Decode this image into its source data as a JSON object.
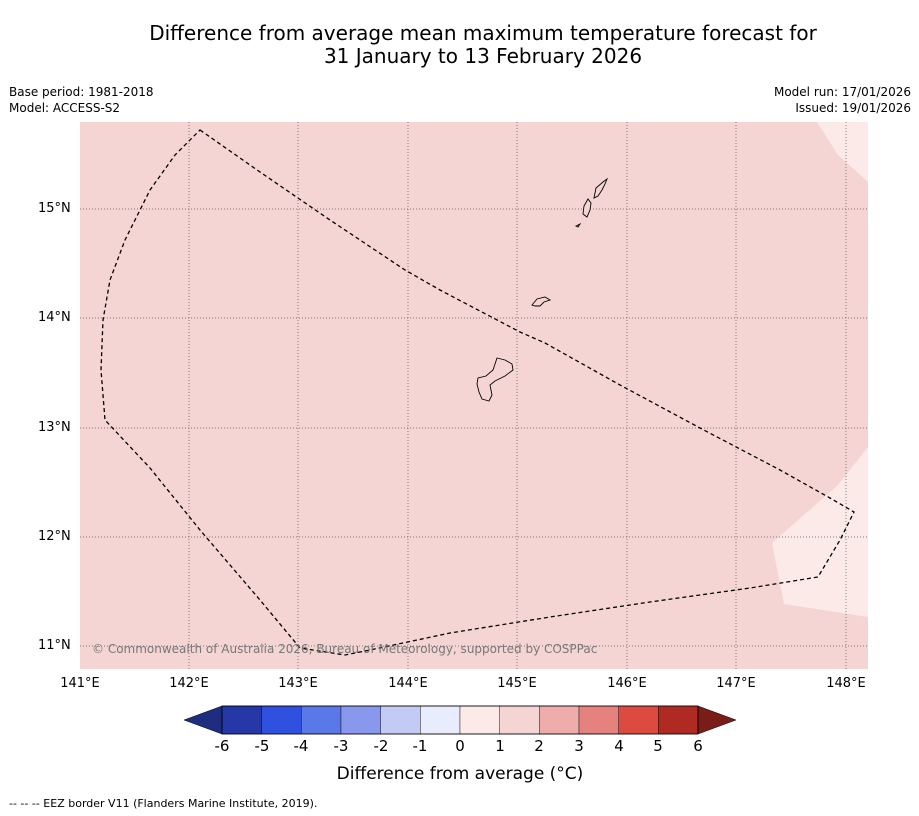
{
  "title": {
    "line1": "Difference from average mean maximum temperature forecast for",
    "line2": "31 January to 13 February 2026"
  },
  "meta_left": {
    "base_period": "Base period: 1981-2018",
    "model": "Model: ACCESS-S2"
  },
  "meta_right": {
    "model_run": "Model run: 17/01/2026",
    "issued": "Issued: 19/01/2026"
  },
  "lat_labels": [
    "15°N",
    "14°N",
    "13°N",
    "12°N",
    "11°N"
  ],
  "lon_labels": [
    "141°E",
    "142°E",
    "143°E",
    "144°E",
    "145°E",
    "146°E",
    "147°E",
    "148°E"
  ],
  "copyright": "© Commonwealth of Australia 2026, Bureau of Meteorology, supported by COSPPac",
  "colorbar": {
    "label": "Difference from average (°C)",
    "ticks": [
      "-6",
      "-5",
      "-4",
      "-3",
      "-2",
      "-1",
      "0",
      "1",
      "2",
      "3",
      "4",
      "5",
      "6"
    ],
    "colors": [
      "#2637a8",
      "#3050e0",
      "#5b78e8",
      "#8898ec",
      "#c3caf4",
      "#e8ecfc",
      "#fbeae8",
      "#f5d5d3",
      "#eeadaa",
      "#e6827d",
      "#dc4a40",
      "#ae2a22"
    ],
    "under_color": "#1e2d80",
    "over_color": "#7a1c18"
  },
  "map": {
    "background_color": "#f5d5d3",
    "light_color": "#fbeae8"
  },
  "footnote": "-- -- -- EEZ border V11 (Flanders Marine Institute, 2019)."
}
